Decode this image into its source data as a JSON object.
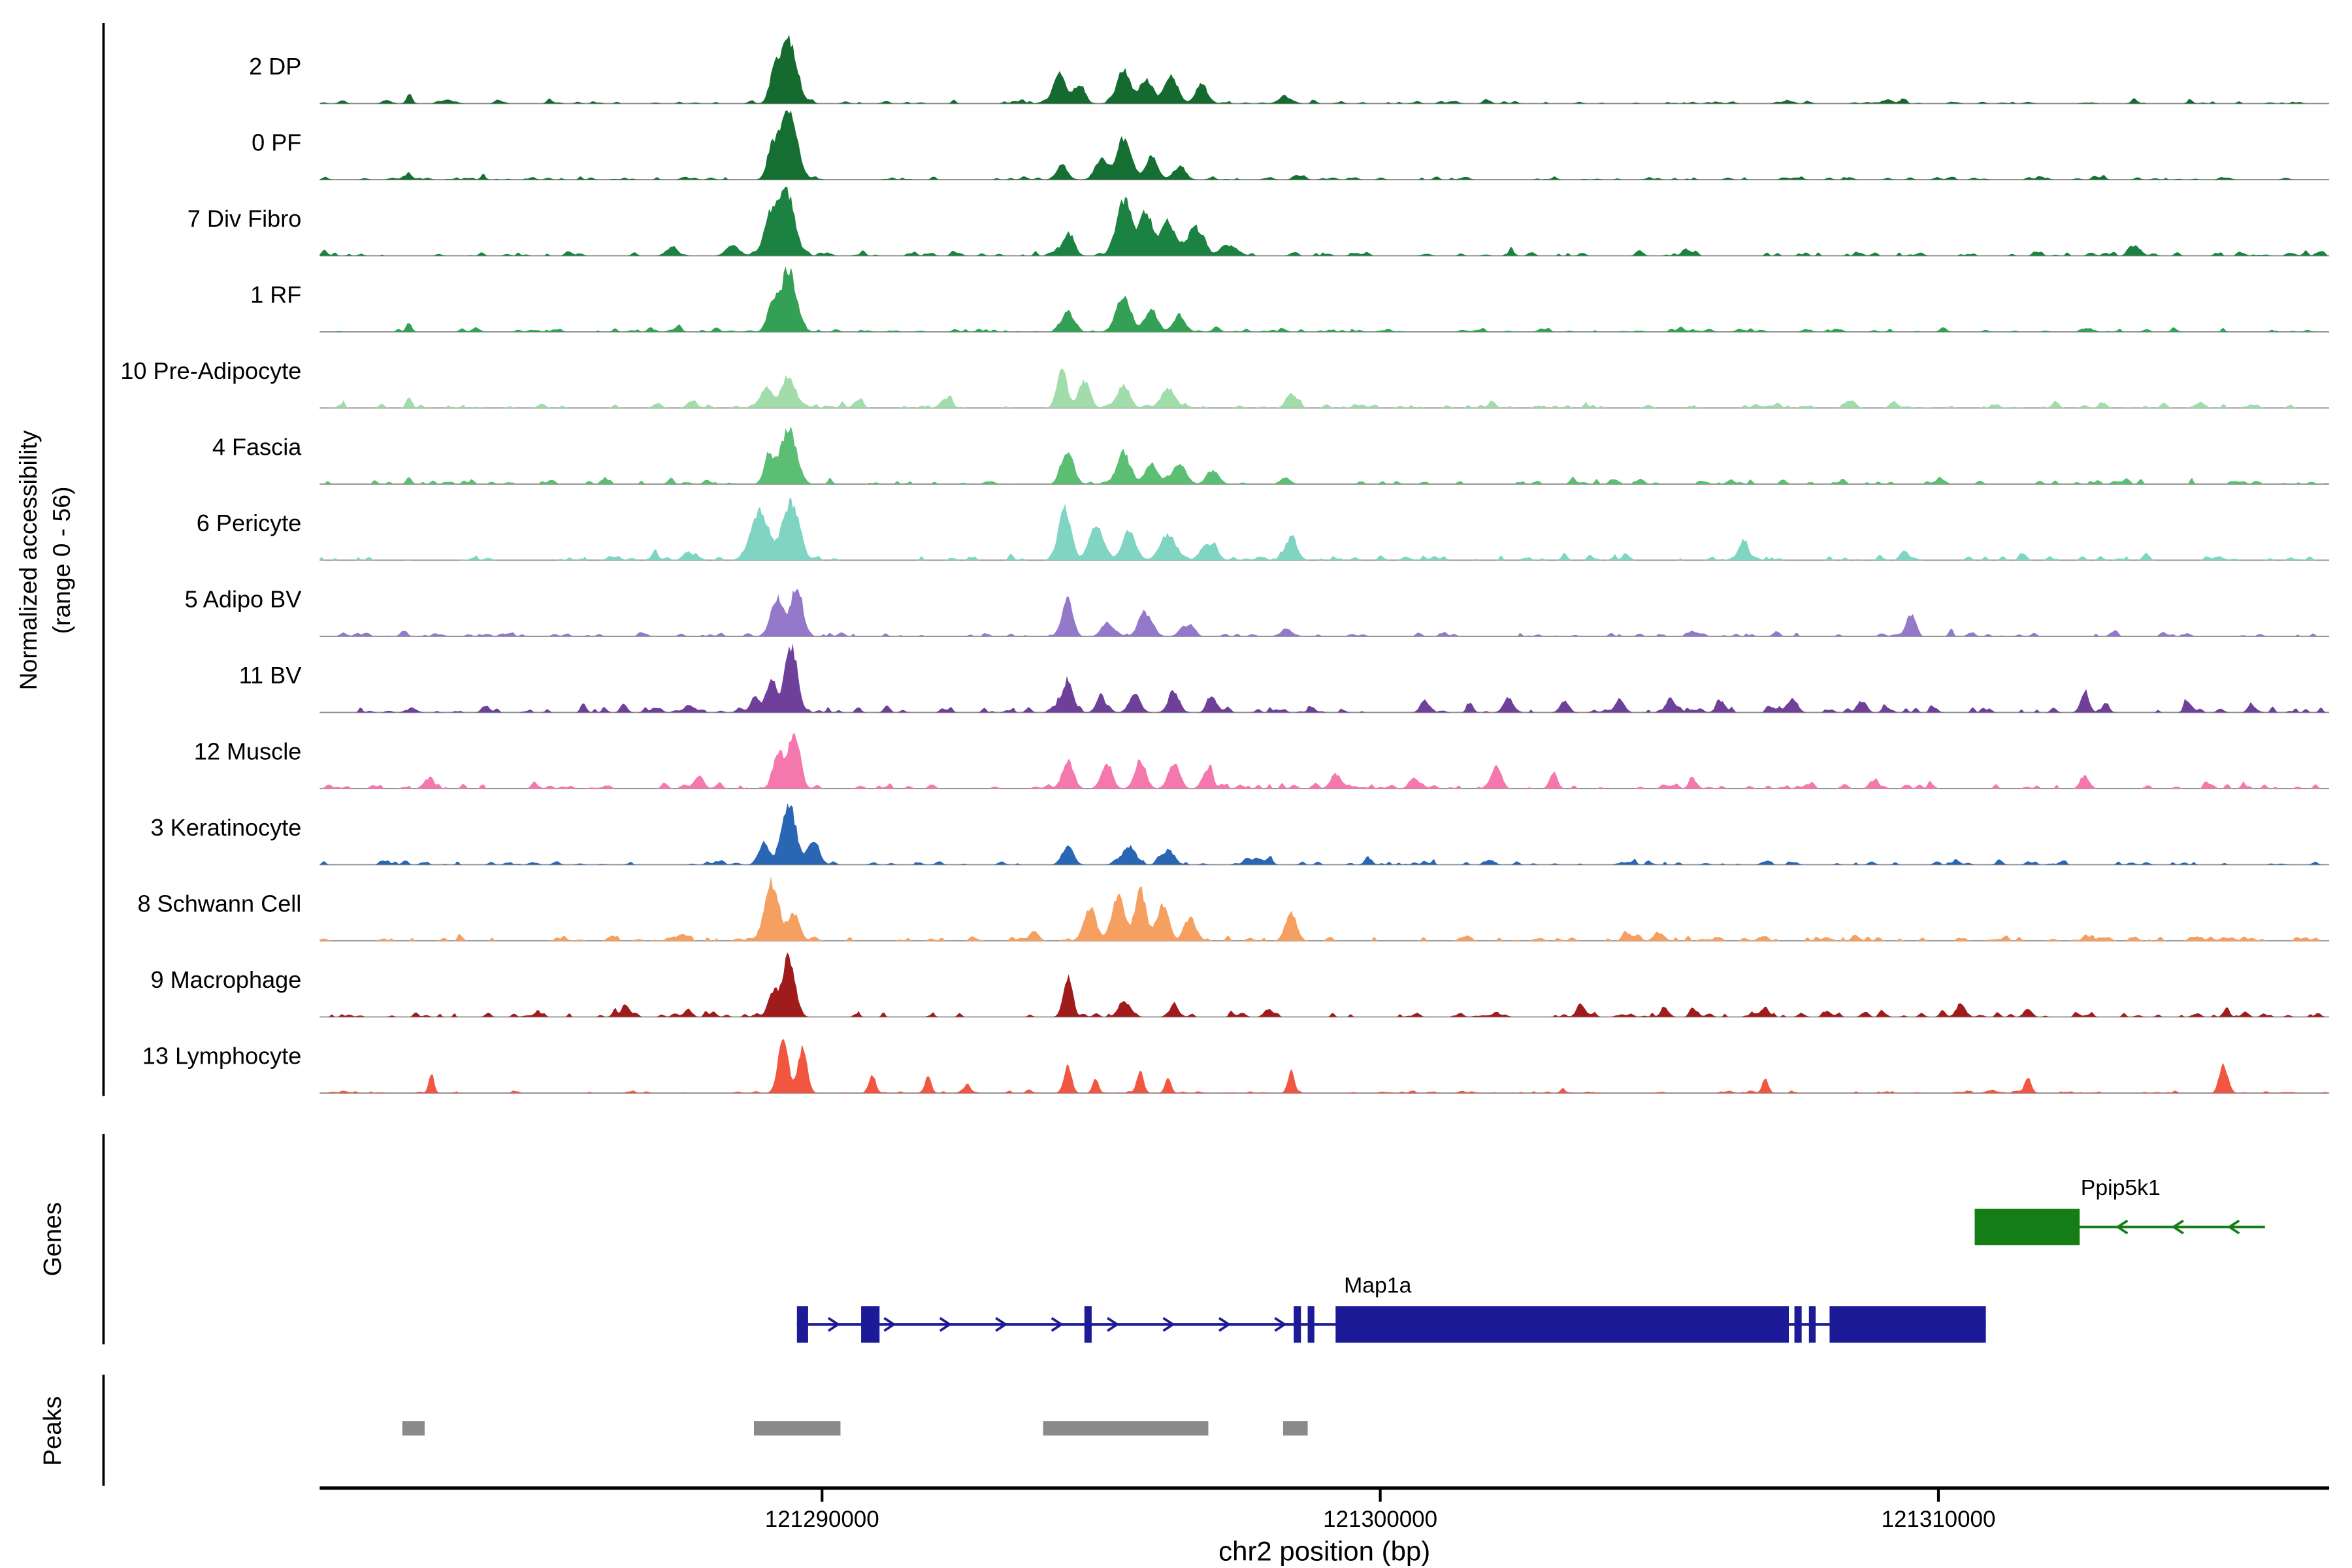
{
  "chart_data": {
    "type": "area",
    "subtype": "genome-browser-accessibility-tracks",
    "xlabel": "chr2 position (bp)",
    "ylabel_line1": "Normalized accessibility",
    "ylabel_line2": "(range 0 - 56)",
    "genes_label": "Genes",
    "peaks_label": "Peaks",
    "genome": {
      "chrom": "chr2",
      "xmin": 121281000,
      "xmax": 121317000
    },
    "xticks": [
      {
        "bp": 121290000,
        "label": "121290000"
      },
      {
        "bp": 121300000,
        "label": "121300000"
      },
      {
        "bp": 121310000,
        "label": "121310000"
      }
    ],
    "tracks": [
      {
        "label": "2 DP",
        "color": "#156a2f",
        "noise": 0.035,
        "peaks": [
          [
            121289400,
            0.95,
            140
          ],
          [
            121289150,
            0.45,
            90
          ],
          [
            121294250,
            0.45,
            110
          ],
          [
            121294600,
            0.28,
            100
          ],
          [
            121295400,
            0.5,
            120
          ],
          [
            121295800,
            0.35,
            110
          ],
          [
            121296250,
            0.42,
            120
          ],
          [
            121296800,
            0.28,
            110
          ],
          [
            121298300,
            0.1,
            120
          ],
          [
            121282600,
            0.1,
            50
          ],
          [
            121309100,
            0.07,
            70
          ]
        ]
      },
      {
        "label": "0 PF",
        "color": "#156f33",
        "noise": 0.035,
        "peaks": [
          [
            121289400,
            1.0,
            150
          ],
          [
            121289100,
            0.4,
            90
          ],
          [
            121295400,
            0.6,
            130
          ],
          [
            121295000,
            0.3,
            110
          ],
          [
            121295900,
            0.35,
            110
          ],
          [
            121294300,
            0.22,
            100
          ],
          [
            121296400,
            0.18,
            110
          ],
          [
            121282600,
            0.1,
            50
          ]
        ]
      },
      {
        "label": "7 Div Fibro",
        "color": "#1c8242",
        "noise": 0.05,
        "peaks": [
          [
            121289350,
            1.0,
            150
          ],
          [
            121289050,
            0.5,
            100
          ],
          [
            121288400,
            0.15,
            120
          ],
          [
            121287300,
            0.12,
            100
          ],
          [
            121295400,
            0.8,
            130
          ],
          [
            121295800,
            0.6,
            120
          ],
          [
            121296200,
            0.5,
            130
          ],
          [
            121296700,
            0.42,
            120
          ],
          [
            121294400,
            0.3,
            110
          ],
          [
            121297300,
            0.15,
            150
          ],
          [
            121313500,
            0.14,
            90
          ],
          [
            121305500,
            0.08,
            80
          ]
        ]
      },
      {
        "label": "1 RF",
        "color": "#33a055",
        "noise": 0.04,
        "peaks": [
          [
            121289400,
            0.92,
            140
          ],
          [
            121289100,
            0.4,
            90
          ],
          [
            121295400,
            0.55,
            130
          ],
          [
            121294400,
            0.3,
            100
          ],
          [
            121295900,
            0.33,
            110
          ],
          [
            121296400,
            0.22,
            110
          ],
          [
            121282600,
            0.14,
            50
          ]
        ]
      },
      {
        "label": "10 Pre-Adipocyte",
        "color": "#a2dcaa",
        "noise": 0.05,
        "peaks": [
          [
            121289400,
            0.5,
            120
          ],
          [
            121289000,
            0.3,
            100
          ],
          [
            121294300,
            0.6,
            90
          ],
          [
            121294700,
            0.42,
            100
          ],
          [
            121295400,
            0.35,
            110
          ],
          [
            121296200,
            0.28,
            130
          ],
          [
            121298400,
            0.22,
            90
          ],
          [
            121292200,
            0.12,
            90
          ],
          [
            121282600,
            0.18,
            50
          ],
          [
            121309200,
            0.1,
            70
          ],
          [
            121312100,
            0.1,
            60
          ],
          [
            121302000,
            0.08,
            70
          ]
        ]
      },
      {
        "label": "4 Fascia",
        "color": "#5cbe72",
        "noise": 0.045,
        "peaks": [
          [
            121289400,
            0.85,
            140
          ],
          [
            121289050,
            0.4,
            90
          ],
          [
            121294400,
            0.5,
            110
          ],
          [
            121295400,
            0.45,
            120
          ],
          [
            121295900,
            0.32,
            110
          ],
          [
            121296400,
            0.3,
            120
          ],
          [
            121297000,
            0.2,
            110
          ],
          [
            121298300,
            0.1,
            90
          ],
          [
            121282600,
            0.1,
            50
          ]
        ]
      },
      {
        "label": "6 Pericyte",
        "color": "#7fd4c2",
        "noise": 0.055,
        "peaks": [
          [
            121288900,
            0.7,
            170
          ],
          [
            121289450,
            0.88,
            140
          ],
          [
            121294350,
            0.78,
            110
          ],
          [
            121294900,
            0.5,
            120
          ],
          [
            121295500,
            0.45,
            120
          ],
          [
            121296200,
            0.4,
            140
          ],
          [
            121296900,
            0.25,
            120
          ],
          [
            121298400,
            0.33,
            110
          ],
          [
            121306500,
            0.28,
            90
          ],
          [
            121309400,
            0.13,
            70
          ],
          [
            121287600,
            0.1,
            90
          ]
        ]
      },
      {
        "label": "5 Adipo BV",
        "color": "#9478c9",
        "noise": 0.045,
        "peaks": [
          [
            121289200,
            0.6,
            110
          ],
          [
            121289550,
            0.78,
            100
          ],
          [
            121294400,
            0.55,
            90
          ],
          [
            121295800,
            0.3,
            120
          ],
          [
            121295100,
            0.2,
            100
          ],
          [
            121296500,
            0.15,
            100
          ],
          [
            121309500,
            0.32,
            80
          ],
          [
            121298300,
            0.1,
            80
          ]
        ]
      },
      {
        "label": "11 BV",
        "color": "#6e4099",
        "noise": 0.07,
        "peaks": [
          [
            121289450,
            0.88,
            110
          ],
          [
            121289100,
            0.45,
            90
          ],
          [
            121288800,
            0.25,
            80
          ],
          [
            121294400,
            0.5,
            90
          ],
          [
            121295000,
            0.2,
            90
          ],
          [
            121295600,
            0.28,
            100
          ],
          [
            121296300,
            0.3,
            100
          ],
          [
            121297000,
            0.2,
            90
          ],
          [
            121300800,
            0.18,
            80
          ],
          [
            121302300,
            0.22,
            90
          ],
          [
            121303300,
            0.18,
            80
          ],
          [
            121304300,
            0.2,
            80
          ],
          [
            121305200,
            0.22,
            80
          ],
          [
            121306100,
            0.18,
            80
          ],
          [
            121307400,
            0.2,
            80
          ],
          [
            121308600,
            0.15,
            70
          ],
          [
            121312600,
            0.22,
            70
          ],
          [
            121313000,
            0.15,
            60
          ],
          [
            121315600,
            0.14,
            60
          ],
          [
            121287600,
            0.12,
            70
          ],
          [
            121284000,
            0.08,
            60
          ]
        ]
      },
      {
        "label": "12 Muscle",
        "color": "#f478ad",
        "noise": 0.06,
        "peaks": [
          [
            121289500,
            0.88,
            100
          ],
          [
            121289200,
            0.5,
            90
          ],
          [
            121283000,
            0.14,
            50
          ],
          [
            121287800,
            0.18,
            80
          ],
          [
            121294400,
            0.4,
            90
          ],
          [
            121295100,
            0.32,
            100
          ],
          [
            121295700,
            0.42,
            100
          ],
          [
            121296300,
            0.38,
            100
          ],
          [
            121296900,
            0.28,
            90
          ],
          [
            121299200,
            0.22,
            90
          ],
          [
            121300600,
            0.18,
            80
          ],
          [
            121302100,
            0.32,
            80
          ],
          [
            121303100,
            0.22,
            70
          ],
          [
            121305600,
            0.14,
            70
          ],
          [
            121312600,
            0.18,
            70
          ],
          [
            121308800,
            0.1,
            60
          ]
        ]
      },
      {
        "label": "3 Keratinocyte",
        "color": "#2b66b4",
        "noise": 0.045,
        "peaks": [
          [
            121289400,
            0.88,
            130
          ],
          [
            121289850,
            0.38,
            100
          ],
          [
            121288950,
            0.3,
            90
          ],
          [
            121294400,
            0.28,
            100
          ],
          [
            121295500,
            0.28,
            120
          ],
          [
            121296200,
            0.22,
            110
          ],
          [
            121297800,
            0.1,
            90
          ],
          [
            121302000,
            0.06,
            70
          ]
        ]
      },
      {
        "label": "8 Schwann Cell",
        "color": "#f5a061",
        "noise": 0.055,
        "peaks": [
          [
            121289100,
            0.85,
            130
          ],
          [
            121289500,
            0.4,
            100
          ],
          [
            121294800,
            0.5,
            110
          ],
          [
            121295300,
            0.7,
            110
          ],
          [
            121295700,
            0.78,
            100
          ],
          [
            121296100,
            0.5,
            110
          ],
          [
            121296600,
            0.35,
            100
          ],
          [
            121298400,
            0.42,
            100
          ],
          [
            121287500,
            0.1,
            90
          ],
          [
            121293800,
            0.15,
            80
          ],
          [
            121305000,
            0.07,
            70
          ]
        ]
      },
      {
        "label": "9 Macrophage",
        "color": "#a01c1c",
        "noise": 0.06,
        "peaks": [
          [
            121289400,
            0.92,
            110
          ],
          [
            121289100,
            0.35,
            80
          ],
          [
            121294400,
            0.58,
            80
          ],
          [
            121295400,
            0.18,
            100
          ],
          [
            121296300,
            0.15,
            90
          ],
          [
            121298000,
            0.12,
            80
          ],
          [
            121286500,
            0.14,
            70
          ],
          [
            121287600,
            0.12,
            70
          ],
          [
            121303600,
            0.18,
            80
          ],
          [
            121305100,
            0.14,
            70
          ],
          [
            121306900,
            0.13,
            70
          ],
          [
            121310400,
            0.17,
            90
          ],
          [
            121311600,
            0.13,
            70
          ],
          [
            121315500,
            0.08,
            60
          ]
        ]
      },
      {
        "label": "13 Lymphocyte",
        "color": "#f25540",
        "noise": 0.025,
        "peaks": [
          [
            121289300,
            0.85,
            90
          ],
          [
            121289650,
            0.7,
            80
          ],
          [
            121290900,
            0.28,
            55
          ],
          [
            121291900,
            0.28,
            55
          ],
          [
            121294400,
            0.4,
            70
          ],
          [
            121294900,
            0.22,
            55
          ],
          [
            121295700,
            0.3,
            60
          ],
          [
            121296200,
            0.22,
            55
          ],
          [
            121298400,
            0.33,
            55
          ],
          [
            121283000,
            0.28,
            45
          ],
          [
            121306900,
            0.22,
            55
          ],
          [
            121311600,
            0.22,
            55
          ],
          [
            121315100,
            0.45,
            70
          ],
          [
            121292600,
            0.1,
            50
          ]
        ]
      }
    ],
    "genes": [
      {
        "name": "Ppip5k1",
        "color": "#157d15",
        "strand": "-",
        "row": 0,
        "line": [
          121310650,
          121315850
        ],
        "exons": [
          [
            121310650,
            121312530
          ]
        ]
      },
      {
        "name": "Map1a",
        "color": "#1c1a96",
        "strand": "+",
        "row": 1,
        "line": [
          121289550,
          121310850
        ],
        "exons": [
          [
            121289550,
            121289750
          ],
          [
            121290700,
            121291030
          ],
          [
            121294700,
            121294830
          ],
          [
            121298450,
            121298580
          ],
          [
            121298700,
            121298820
          ],
          [
            121299200,
            121307320
          ],
          [
            121307420,
            121307550
          ],
          [
            121307680,
            121307800
          ],
          [
            121308050,
            121310850
          ]
        ]
      }
    ],
    "peak_regions": [
      [
        121282480,
        121282880
      ],
      [
        121288780,
        121290330
      ],
      [
        121293960,
        121296920
      ],
      [
        121298260,
        121298700
      ]
    ]
  }
}
